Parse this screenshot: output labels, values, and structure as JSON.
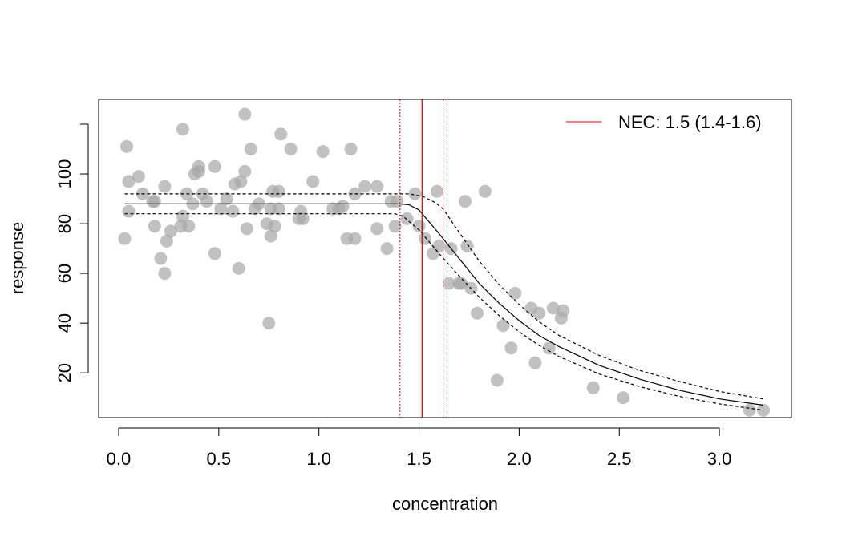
{
  "chart_data": {
    "type": "scatter",
    "title": "",
    "xlabel": "concentration",
    "ylabel": "response",
    "xlim": [
      -0.1,
      3.36
    ],
    "ylim": [
      2,
      130
    ],
    "x_ticks": [
      0.0,
      0.5,
      1.0,
      1.5,
      2.0,
      2.5,
      3.0
    ],
    "x_tick_labels": [
      "0.0",
      "0.5",
      "1.0",
      "1.5",
      "2.0",
      "2.5",
      "3.0"
    ],
    "y_ticks": [
      20,
      40,
      60,
      80,
      100,
      120
    ],
    "y_tick_labels": [
      "20",
      "40",
      "60",
      "80",
      "100",
      ""
    ],
    "grid": false,
    "point_color": "#a6a6a6",
    "line_color": "#000000",
    "nec_color": "#cc0000",
    "legend": {
      "position": "top-right",
      "entries": [
        {
          "label": "NEC: 1.5 (1.4-1.6)",
          "color": "#cc0000"
        }
      ]
    },
    "nec": {
      "value": 1.515,
      "lower": 1.405,
      "upper": 1.62
    },
    "points": [
      [
        0.03,
        74
      ],
      [
        0.04,
        111
      ],
      [
        0.05,
        97
      ],
      [
        0.05,
        85
      ],
      [
        0.1,
        99
      ],
      [
        0.12,
        92
      ],
      [
        0.17,
        89
      ],
      [
        0.18,
        89
      ],
      [
        0.18,
        79
      ],
      [
        0.21,
        66
      ],
      [
        0.23,
        95
      ],
      [
        0.23,
        60
      ],
      [
        0.24,
        73
      ],
      [
        0.26,
        77
      ],
      [
        0.31,
        79
      ],
      [
        0.32,
        83
      ],
      [
        0.32,
        118
      ],
      [
        0.34,
        92
      ],
      [
        0.35,
        79
      ],
      [
        0.37,
        88
      ],
      [
        0.38,
        100
      ],
      [
        0.4,
        101
      ],
      [
        0.4,
        103
      ],
      [
        0.42,
        92
      ],
      [
        0.44,
        89
      ],
      [
        0.48,
        103
      ],
      [
        0.48,
        68
      ],
      [
        0.51,
        86
      ],
      [
        0.54,
        90
      ],
      [
        0.57,
        85
      ],
      [
        0.58,
        96
      ],
      [
        0.6,
        62
      ],
      [
        0.61,
        97
      ],
      [
        0.63,
        124
      ],
      [
        0.63,
        101
      ],
      [
        0.64,
        78
      ],
      [
        0.66,
        110
      ],
      [
        0.68,
        86
      ],
      [
        0.7,
        88
      ],
      [
        0.74,
        80
      ],
      [
        0.75,
        40
      ],
      [
        0.76,
        75
      ],
      [
        0.76,
        86
      ],
      [
        0.77,
        93
      ],
      [
        0.78,
        79
      ],
      [
        0.8,
        93
      ],
      [
        0.8,
        86
      ],
      [
        0.81,
        116
      ],
      [
        0.86,
        110
      ],
      [
        0.9,
        82
      ],
      [
        0.91,
        85
      ],
      [
        0.92,
        82
      ],
      [
        0.97,
        97
      ],
      [
        1.02,
        109
      ],
      [
        1.07,
        86
      ],
      [
        1.1,
        86
      ],
      [
        1.12,
        87
      ],
      [
        1.14,
        74
      ],
      [
        1.16,
        110
      ],
      [
        1.18,
        74
      ],
      [
        1.18,
        92
      ],
      [
        1.23,
        95
      ],
      [
        1.29,
        95
      ],
      [
        1.29,
        78
      ],
      [
        1.34,
        70
      ],
      [
        1.36,
        89
      ],
      [
        1.38,
        79
      ],
      [
        1.39,
        89
      ],
      [
        1.44,
        82
      ],
      [
        1.48,
        92
      ],
      [
        1.5,
        79
      ],
      [
        1.53,
        74
      ],
      [
        1.57,
        68
      ],
      [
        1.59,
        93
      ],
      [
        1.6,
        71
      ],
      [
        1.65,
        56
      ],
      [
        1.66,
        70
      ],
      [
        1.7,
        56
      ],
      [
        1.71,
        56
      ],
      [
        1.73,
        89
      ],
      [
        1.74,
        71
      ],
      [
        1.76,
        54
      ],
      [
        1.79,
        44
      ],
      [
        1.83,
        93
      ],
      [
        1.89,
        17
      ],
      [
        1.92,
        39
      ],
      [
        1.96,
        30
      ],
      [
        1.98,
        52
      ],
      [
        2.06,
        46
      ],
      [
        2.08,
        24
      ],
      [
        2.1,
        44
      ],
      [
        2.15,
        30
      ],
      [
        2.17,
        46
      ],
      [
        2.21,
        42
      ],
      [
        2.22,
        45
      ],
      [
        2.37,
        14
      ],
      [
        2.52,
        10
      ],
      [
        3.15,
        5
      ],
      [
        3.22,
        5
      ]
    ],
    "fit_line": [
      [
        0.03,
        88
      ],
      [
        1.4,
        88
      ],
      [
        1.45,
        87.6
      ],
      [
        1.5,
        85.5
      ],
      [
        1.6,
        76
      ],
      [
        1.7,
        66
      ],
      [
        1.8,
        56
      ],
      [
        1.9,
        48
      ],
      [
        2.0,
        41
      ],
      [
        2.1,
        35
      ],
      [
        2.2,
        30.5
      ],
      [
        2.4,
        23
      ],
      [
        2.6,
        17.5
      ],
      [
        2.8,
        13
      ],
      [
        3.0,
        9.5
      ],
      [
        3.22,
        7
      ]
    ],
    "ci_upper": [
      [
        0.03,
        92
      ],
      [
        1.45,
        92
      ],
      [
        1.52,
        91
      ],
      [
        1.58,
        88.5
      ],
      [
        1.62,
        86
      ],
      [
        1.7,
        76.5
      ],
      [
        1.8,
        65
      ],
      [
        1.9,
        55.5
      ],
      [
        2.0,
        47.5
      ],
      [
        2.1,
        40.5
      ],
      [
        2.2,
        35
      ],
      [
        2.4,
        27
      ],
      [
        2.6,
        21
      ],
      [
        2.8,
        16.5
      ],
      [
        3.0,
        12.5
      ],
      [
        3.22,
        9.5
      ]
    ],
    "ci_lower": [
      [
        0.03,
        84
      ],
      [
        1.38,
        84
      ],
      [
        1.42,
        83
      ],
      [
        1.5,
        77.5
      ],
      [
        1.6,
        68
      ],
      [
        1.7,
        59
      ],
      [
        1.8,
        50.5
      ],
      [
        1.9,
        43
      ],
      [
        2.0,
        36.5
      ],
      [
        2.1,
        31
      ],
      [
        2.2,
        26.5
      ],
      [
        2.4,
        19.5
      ],
      [
        2.6,
        14.5
      ],
      [
        2.8,
        10.5
      ],
      [
        3.0,
        7.5
      ],
      [
        3.22,
        5
      ]
    ]
  }
}
